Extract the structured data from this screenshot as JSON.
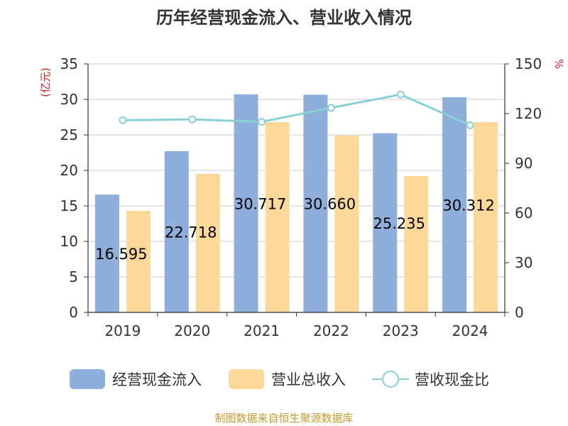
{
  "chart_data": {
    "type": "bar",
    "title": "历年经营现金流入、营业收入情况",
    "categories": [
      "2019",
      "2020",
      "2021",
      "2022",
      "2023",
      "2024"
    ],
    "series": [
      {
        "name": "经营现金流入",
        "kind": "bar",
        "axis": "left",
        "color": "#8eaedb",
        "values": [
          16.595,
          22.718,
          30.717,
          30.66,
          25.235,
          30.312
        ],
        "labels": [
          "16.595",
          "22.718",
          "30.717",
          "30.660",
          "25.235",
          "30.312"
        ]
      },
      {
        "name": "营业总收入",
        "kind": "bar",
        "axis": "left",
        "color": "#fdd999",
        "values": [
          14.3,
          19.5,
          26.8,
          24.9,
          19.2,
          26.8
        ]
      },
      {
        "name": "营收现金比",
        "kind": "line",
        "axis": "right",
        "color": "#88d0d4",
        "values": [
          116,
          116.5,
          115,
          123.5,
          131.5,
          113
        ]
      }
    ],
    "left_axis": {
      "unit": "(亿元)",
      "min": 0,
      "max": 35,
      "ticks": [
        0,
        5,
        10,
        15,
        20,
        25,
        30,
        35
      ]
    },
    "right_axis": {
      "unit": "%",
      "min": 0,
      "max": 150,
      "ticks": [
        0,
        30,
        60,
        90,
        120,
        150
      ]
    },
    "grid": true,
    "legend_position": "bottom",
    "source": "制图数据来自恒生聚源数据库"
  }
}
